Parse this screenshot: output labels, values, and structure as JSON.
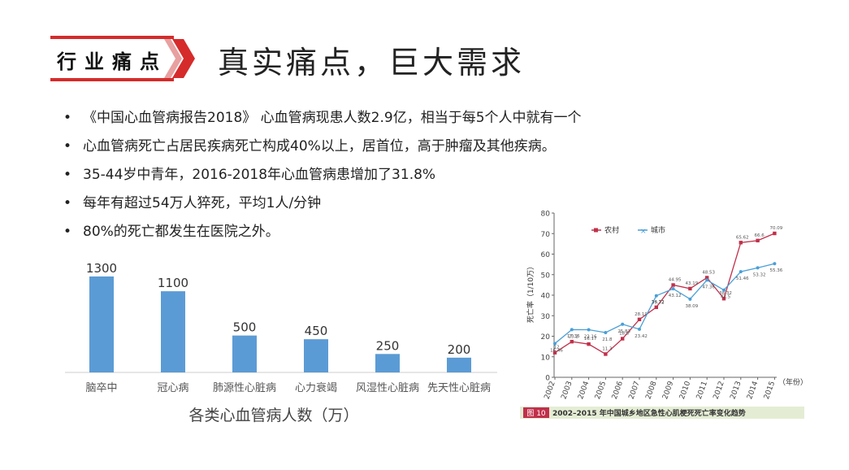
{
  "header": {
    "tag": "行业痛点",
    "title": "真实痛点，巨大需求"
  },
  "bullets": [
    "《中国心血管病报告2018》 心血管病现患人数2.9亿，相当于每5个人中就有一个",
    "心血管病死亡占居民疾病死亡构成40%以上，居首位，高于肿瘤及其他疾病。",
    "35-44岁中青年，2016-2018年心血管病患增加了31.8%",
    "每年有超过54万人猝死，平均1人/分钟",
    "80%的死亡都发生在医院之外。"
  ],
  "colors": {
    "accent": "#d62b2b",
    "bar": "#5b9bd5",
    "rural": "#c0304a",
    "urban": "#4a9fd6"
  },
  "chart_data": [
    {
      "type": "bar",
      "title": "各类心血管病人数（万）",
      "categories": [
        "脑卒中",
        "冠心病",
        "肺源性心脏病",
        "心力衰竭",
        "风湿性心脏病",
        "先天性心脏病"
      ],
      "values": [
        1300,
        1100,
        500,
        450,
        250,
        200
      ],
      "data_labels": [
        "1300",
        "1100",
        "500",
        "450",
        "250",
        "200"
      ]
    },
    {
      "type": "line",
      "caption_tag": "图 10",
      "caption": "2002–2015 年中国城乡地区急性心肌梗死死亡率变化趋势",
      "ylabel": "死亡率（1/10万）",
      "xlabel": "（年份）",
      "ylim": [
        0,
        80
      ],
      "yticks": [
        0,
        10,
        20,
        30,
        40,
        50,
        60,
        70,
        80
      ],
      "x": [
        "2002",
        "2003",
        "2004",
        "2005",
        "2006",
        "2007",
        "2008",
        "2009",
        "2010",
        "2011",
        "2012",
        "2013",
        "2014",
        "2015"
      ],
      "legend_position": "top-left",
      "series": [
        {
          "name": "农村",
          "values": [
            12,
            17.36,
            16.17,
            11.3,
            18.8,
            28.19,
            34.12,
            44.95,
            43.19,
            48.53,
            38.32,
            65.62,
            66.6,
            70.09
          ]
        },
        {
          "name": "城市",
          "values": [
            16.46,
            23.2,
            23.16,
            21.8,
            25.83,
            23.42,
            39.72,
            43.12,
            38.09,
            47.36,
            42.5,
            51.46,
            53.32,
            55.36
          ]
        }
      ]
    }
  ]
}
